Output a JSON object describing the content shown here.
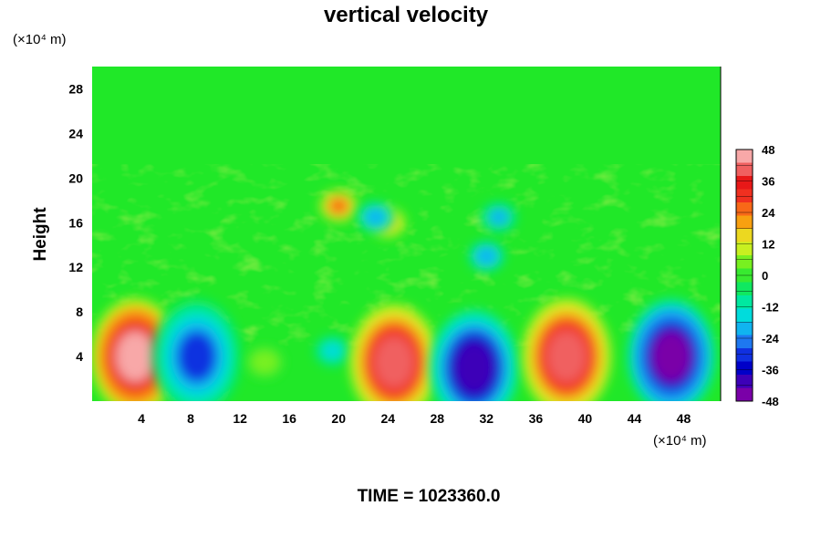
{
  "chart_data": {
    "type": "heatmap",
    "title": "vertical velocity",
    "xlabel": "",
    "ylabel": "Height",
    "x_unit_label": "(×10⁴ m)",
    "y_unit_label": "(×10⁴ m)",
    "xlim": [
      0,
      51
    ],
    "ylim": [
      0,
      30
    ],
    "x_ticks": [
      4,
      8,
      12,
      16,
      20,
      24,
      28,
      32,
      36,
      40,
      44,
      48
    ],
    "y_ticks": [
      4,
      8,
      12,
      16,
      20,
      24,
      28
    ],
    "colorbar": {
      "min": -48,
      "max": 48,
      "step": 6,
      "tick_labels": [
        48,
        36,
        24,
        12,
        0,
        -12,
        -24,
        -36,
        -48
      ],
      "colors": [
        "#7a00a8",
        "#3d00b8",
        "#0000c8",
        "#1030e0",
        "#1e78f0",
        "#10b4f0",
        "#00dcdc",
        "#00e8a0",
        "#10e860",
        "#38ea30",
        "#78f020",
        "#c8f020",
        "#ecd820",
        "#f8a010",
        "#f86818",
        "#f03020",
        "#e81818",
        "#f06060",
        "#f8a8a8"
      ]
    },
    "field_features": [
      {
        "x": 3.5,
        "y": 4.0,
        "value": 48
      },
      {
        "x": 8.5,
        "y": 4.0,
        "value": -30
      },
      {
        "x": 14.0,
        "y": 3.5,
        "value": 6
      },
      {
        "x": 19.5,
        "y": 4.5,
        "value": -16
      },
      {
        "x": 24.5,
        "y": 3.5,
        "value": 40
      },
      {
        "x": 31.0,
        "y": 3.0,
        "value": -44
      },
      {
        "x": 38.5,
        "y": 4.0,
        "value": 42
      },
      {
        "x": 47.0,
        "y": 4.0,
        "value": -48
      },
      {
        "x": 20.0,
        "y": 17.5,
        "value": 24
      },
      {
        "x": 24.0,
        "y": 16.0,
        "value": 14
      },
      {
        "x": 23.0,
        "y": 16.5,
        "value": -24
      },
      {
        "x": 32.0,
        "y": 13.0,
        "value": -24
      },
      {
        "x": 33.0,
        "y": 16.5,
        "value": -20
      }
    ]
  },
  "footer": {
    "time_label": "TIME = 1023360.0"
  }
}
